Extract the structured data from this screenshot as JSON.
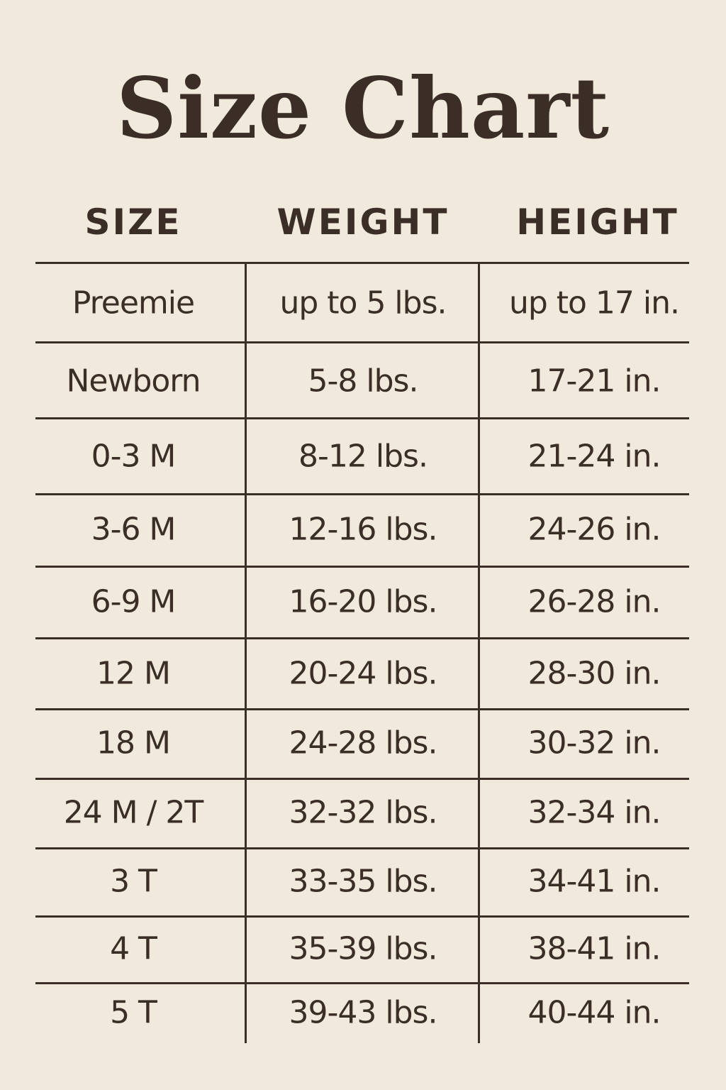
{
  "title": "Size Chart",
  "headers": [
    "SIZE",
    "WEIGHT",
    "HEIGHT"
  ],
  "rows": [
    [
      "Preemie",
      "up to 5 lbs.",
      "up to 17 in."
    ],
    [
      "Newborn",
      "5-8 lbs.",
      "17-21 in."
    ],
    [
      "0-3 M",
      "8-12 lbs.",
      "21-24 in."
    ],
    [
      "3-6 M",
      "12-16 lbs.",
      "24-26 in."
    ],
    [
      "6-9 M",
      "16-20 lbs.",
      "26-28 in."
    ],
    [
      "12 M",
      "20-24 lbs.",
      "28-30 in."
    ],
    [
      "18 M",
      "24-28 lbs.",
      "30-32 in."
    ],
    [
      "24 M / 2T",
      "32-32 lbs.",
      "32-34 in."
    ],
    [
      "3 T",
      "33-35 lbs.",
      "34-41 in."
    ],
    [
      "4 T",
      "35-39 lbs.",
      "38-41 in."
    ],
    [
      "5 T",
      "39-43 lbs.",
      "40-44 in."
    ]
  ],
  "colors": {
    "background": "#f1e9dc",
    "text": "#3a2e26"
  }
}
